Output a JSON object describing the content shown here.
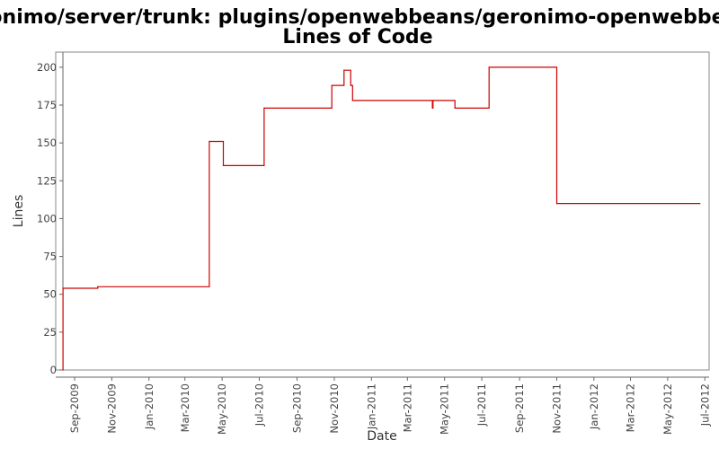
{
  "chart_data": {
    "type": "line",
    "title": "/geronimo/server/trunk: plugins/openwebbeans/geronimo-openwebbeans/",
    "subtitle": "Lines of Code",
    "xlabel": "Date",
    "ylabel": "Lines",
    "ylim": [
      0,
      210
    ],
    "xlim": [
      "2009-08-01",
      "2012-07-08"
    ],
    "grid": false,
    "colors": {
      "line": "#cc0000",
      "plot_border": "#888888",
      "axis": "#666666"
    },
    "y_ticks": [
      0,
      25,
      50,
      75,
      100,
      125,
      150,
      175,
      200
    ],
    "x_ticks": [
      {
        "date": "2009-09-01",
        "label": "Sep-2009"
      },
      {
        "date": "2009-11-01",
        "label": "Nov-2009"
      },
      {
        "date": "2010-01-01",
        "label": "Jan-2010"
      },
      {
        "date": "2010-03-01",
        "label": "Mar-2010"
      },
      {
        "date": "2010-05-01",
        "label": "May-2010"
      },
      {
        "date": "2010-07-01",
        "label": "Jul-2010"
      },
      {
        "date": "2010-09-01",
        "label": "Sep-2010"
      },
      {
        "date": "2010-11-01",
        "label": "Nov-2010"
      },
      {
        "date": "2011-01-01",
        "label": "Jan-2011"
      },
      {
        "date": "2011-03-01",
        "label": "Mar-2011"
      },
      {
        "date": "2011-05-01",
        "label": "May-2011"
      },
      {
        "date": "2011-07-01",
        "label": "Jul-2011"
      },
      {
        "date": "2011-09-01",
        "label": "Sep-2011"
      },
      {
        "date": "2011-11-01",
        "label": "Nov-2011"
      },
      {
        "date": "2012-01-01",
        "label": "Jan-2012"
      },
      {
        "date": "2012-03-01",
        "label": "Mar-2012"
      },
      {
        "date": "2012-05-01",
        "label": "May-2012"
      },
      {
        "date": "2012-07-01",
        "label": "Jul-2012"
      }
    ],
    "series": [
      {
        "step": true,
        "points": [
          {
            "date": "2009-08-13",
            "value": 0
          },
          {
            "date": "2009-08-13",
            "value": 54
          },
          {
            "date": "2009-10-09",
            "value": 55
          },
          {
            "date": "2010-04-10",
            "value": 151
          },
          {
            "date": "2010-05-03",
            "value": 135
          },
          {
            "date": "2010-07-09",
            "value": 173
          },
          {
            "date": "2010-10-28",
            "value": 188
          },
          {
            "date": "2010-11-17",
            "value": 198
          },
          {
            "date": "2010-11-28",
            "value": 188
          },
          {
            "date": "2010-12-01",
            "value": 178
          },
          {
            "date": "2011-04-11",
            "value": 173
          },
          {
            "date": "2011-04-12",
            "value": 178
          },
          {
            "date": "2011-05-18",
            "value": 173
          },
          {
            "date": "2011-07-13",
            "value": 200
          },
          {
            "date": "2011-11-01",
            "value": 110
          },
          {
            "date": "2012-06-23",
            "value": 110
          }
        ]
      }
    ]
  }
}
